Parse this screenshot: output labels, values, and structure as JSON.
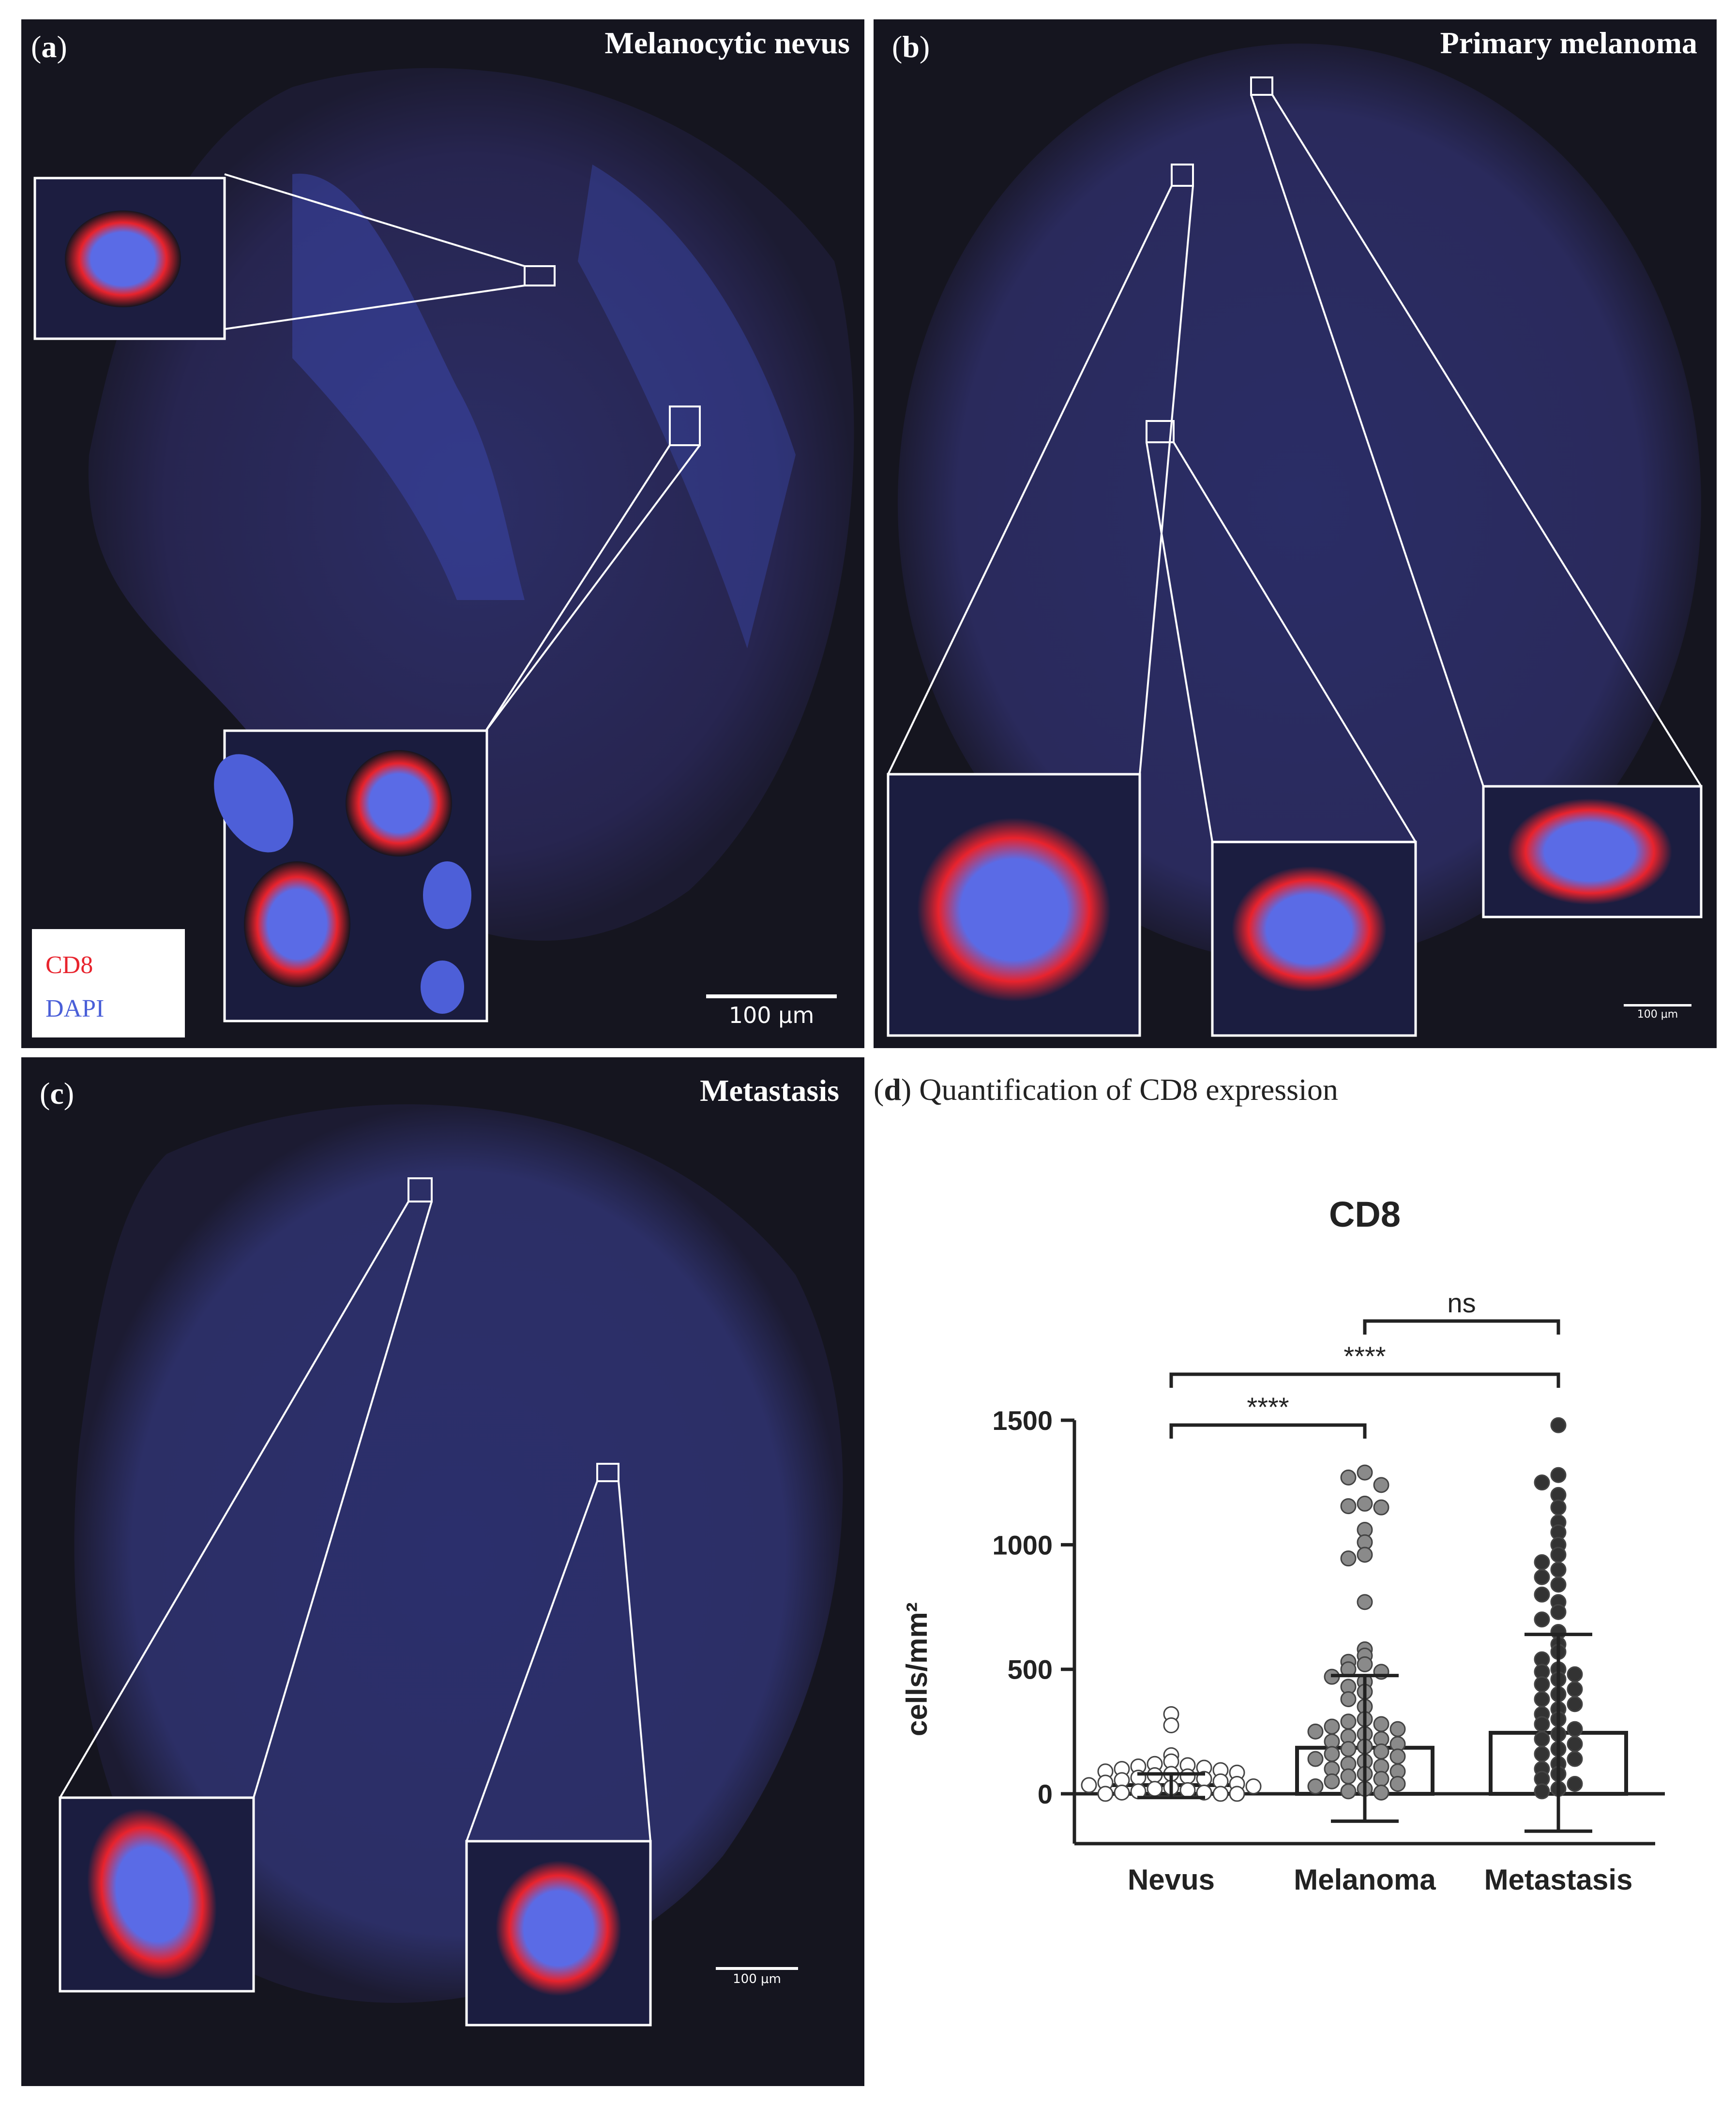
{
  "figure": {
    "panel_a": {
      "label": "a",
      "title": "Melanocytic nevus",
      "scale_bar": "100 μm",
      "legend": {
        "cd8": "CD8",
        "dapi": "DAPI"
      }
    },
    "panel_b": {
      "label": "b",
      "title": "Primary melanoma",
      "scale_bar": "100 μm"
    },
    "panel_c": {
      "label": "c",
      "title": "Metastasis",
      "scale_bar": "100 μm"
    },
    "panel_d": {
      "label": "d",
      "heading": " Quantification of CD8 expression"
    }
  },
  "colors": {
    "cd8": "#e8232d",
    "dapi": "#4a5fd8",
    "background": "#15151f"
  },
  "chart_data": {
    "type": "bar",
    "title": "CD8",
    "ylabel": "cells/mm²",
    "xlabel": "",
    "categories": [
      "Nevus",
      "Melanoma",
      "Metastasis"
    ],
    "values": [
      35,
      185,
      245
    ],
    "error_upper": [
      80,
      475,
      640
    ],
    "error_lower": [
      -15,
      -110,
      -150
    ],
    "ylim": [
      -200,
      1500
    ],
    "yticks": [
      0,
      500,
      1000,
      1500
    ],
    "grid": false,
    "point_fill": [
      "#ffffff",
      "#8a8a8a",
      "#333333"
    ],
    "points": {
      "Nevus": [
        320,
        275,
        155,
        130,
        120,
        115,
        110,
        105,
        100,
        95,
        90,
        85,
        80,
        75,
        70,
        65,
        60,
        55,
        50,
        45,
        40,
        35,
        30,
        25,
        20,
        15,
        10,
        5,
        5,
        0,
        0,
        0
      ],
      "Melanoma": [
        1290,
        1270,
        1240,
        1165,
        1155,
        1150,
        1060,
        1010,
        960,
        945,
        770,
        580,
        555,
        530,
        520,
        500,
        490,
        470,
        450,
        430,
        410,
        380,
        350,
        300,
        290,
        280,
        270,
        260,
        250,
        240,
        230,
        220,
        210,
        200,
        190,
        180,
        170,
        160,
        150,
        140,
        130,
        120,
        110,
        100,
        90,
        80,
        70,
        60,
        50,
        40,
        30,
        20,
        10,
        5
      ],
      "Metastasis": [
        1480,
        1280,
        1250,
        1200,
        1150,
        1090,
        1050,
        1000,
        960,
        930,
        900,
        870,
        840,
        800,
        770,
        730,
        700,
        650,
        600,
        570,
        540,
        500,
        490,
        480,
        460,
        440,
        420,
        400,
        380,
        360,
        340,
        320,
        300,
        280,
        260,
        240,
        220,
        200,
        180,
        160,
        140,
        120,
        100,
        80,
        60,
        40,
        20,
        10
      ]
    },
    "annotations": [
      {
        "from": "Nevus",
        "to": "Melanoma",
        "text": "****"
      },
      {
        "from": "Nevus",
        "to": "Metastasis",
        "text": "****"
      },
      {
        "from": "Melanoma",
        "to": "Metastasis",
        "text": "ns"
      }
    ]
  }
}
